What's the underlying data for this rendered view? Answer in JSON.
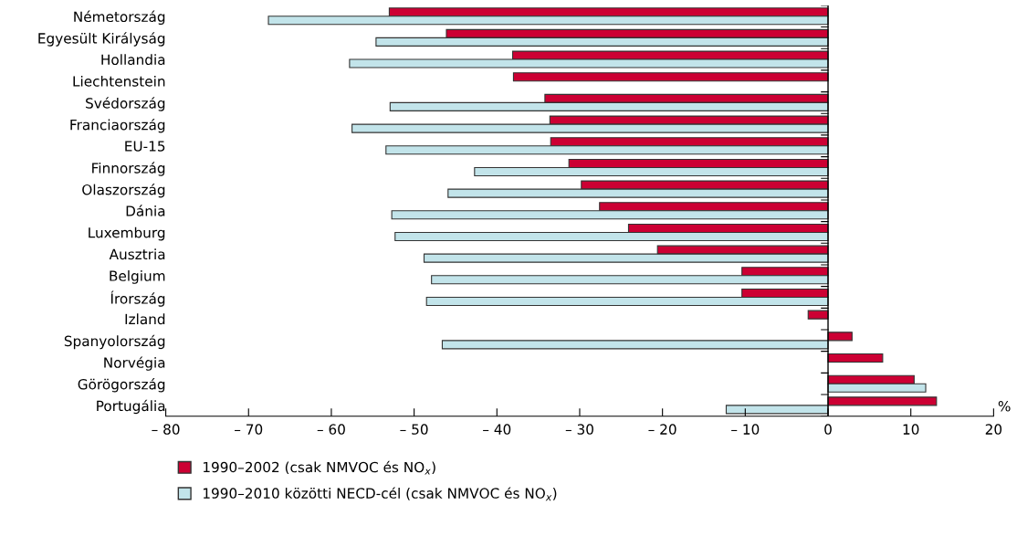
{
  "chart_data": {
    "type": "bar",
    "orientation": "horizontal",
    "xlabel": "%",
    "categories": [
      "Németország",
      "Egyesült Királyság",
      "Hollandia",
      "Liechtenstein",
      "Svédország",
      "Franciaország",
      "EU-15",
      "Finnország",
      "Olaszország",
      "Dánia",
      "Luxemburg",
      "Ausztria",
      "Belgium",
      "Írország",
      "Izland",
      "Spanyolország",
      "Norvégia",
      "Görögország",
      "Portugália"
    ],
    "series": [
      {
        "name": "1990–2002 (csak NMVOC és NO$_{x}$)",
        "color": "#cc0033",
        "values": [
          -53.0,
          -46.1,
          -38.1,
          -38.0,
          -34.2,
          -33.6,
          -33.5,
          -31.3,
          -29.8,
          -27.6,
          -24.1,
          -20.6,
          -10.4,
          -10.4,
          -2.4,
          2.9,
          6.6,
          10.4,
          13.1
        ]
      },
      {
        "name": "1990–2010 közötti NECD-cél (csak NMVOC és NO$_{x}$)",
        "color": "#c2e4ea",
        "values": [
          -67.6,
          -54.6,
          -57.8,
          null,
          -52.9,
          -57.5,
          -53.4,
          -42.7,
          -45.9,
          -52.7,
          -52.3,
          -48.8,
          -47.9,
          -48.5,
          null,
          -46.6,
          null,
          11.8,
          -12.3
        ]
      }
    ],
    "xlim": [
      -80,
      20
    ],
    "xticks": [
      {
        "value": -80,
        "label": "– 80"
      },
      {
        "value": -70,
        "label": "– 70"
      },
      {
        "value": -60,
        "label": "– 60"
      },
      {
        "value": -50,
        "label": "– 50"
      },
      {
        "value": -40,
        "label": "– 40"
      },
      {
        "value": -30,
        "label": "– 30"
      },
      {
        "value": -20,
        "label": "– 20"
      },
      {
        "value": -10,
        "label": "– 10"
      },
      0,
      10,
      20
    ],
    "ref_lines": [
      {
        "axis": "x",
        "value": 0,
        "color": "#000000"
      }
    ],
    "legend": "bottom"
  }
}
